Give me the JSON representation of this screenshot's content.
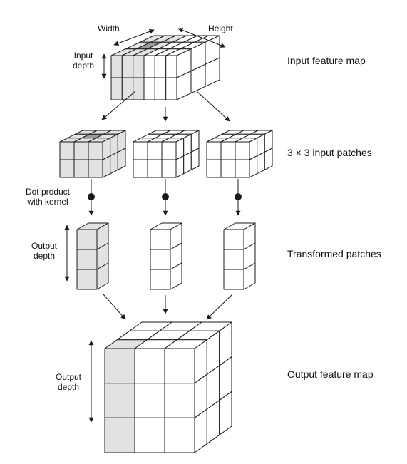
{
  "labels": {
    "width": "Width",
    "height": "Height",
    "input_depth_line1": "Input",
    "input_depth_line2": "depth",
    "dot_product_line1": "Dot product",
    "dot_product_line2": "with kernel",
    "output_depth_line1": "Output",
    "output_depth_line2": "depth",
    "output_depth2_line1": "Output",
    "output_depth2_line2": "depth"
  },
  "sections": {
    "input_feature_map": "Input feature map",
    "input_patches": "3 × 3 input patches",
    "transformed_patches": "Transformed patches",
    "output_feature_map": "Output feature map"
  },
  "colors": {
    "stroke": "#1a1a1a",
    "face": "#ffffff",
    "highlight": "#e2e2e2",
    "center_highlight": "#9a9a9a"
  }
}
